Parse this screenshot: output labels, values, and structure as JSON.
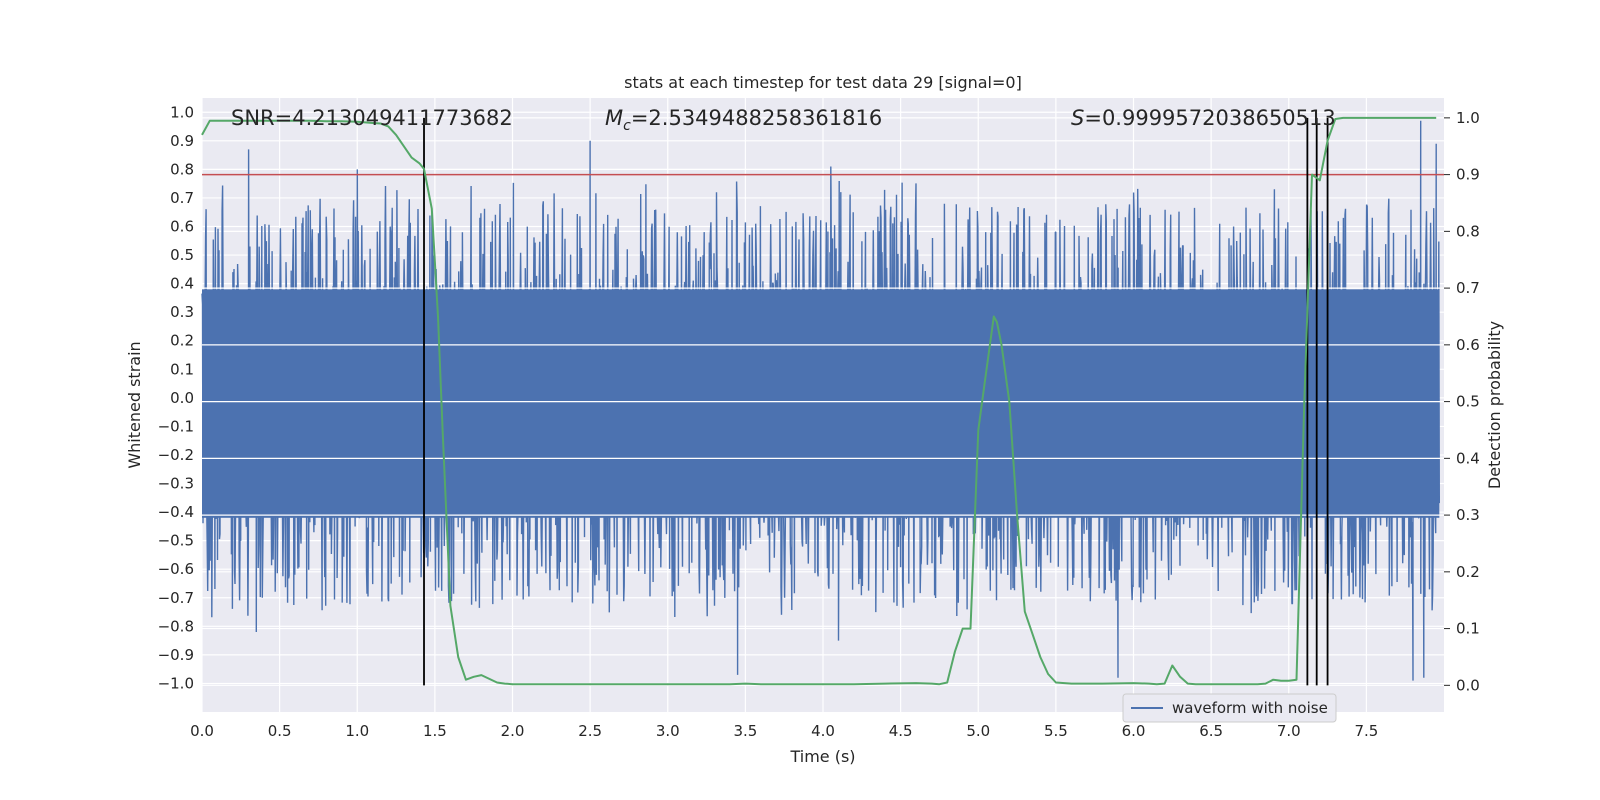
{
  "chart_data": {
    "type": "line",
    "title": "stats at each timestep for test data 29 [signal=0]",
    "xlabel": "Time (s)",
    "ylabel": "Whitened strain",
    "ylabel_right": "Detection probability",
    "xlim": [
      0.0,
      8.0
    ],
    "ylim": [
      -1.1,
      1.05
    ],
    "ylim_right": [
      -0.047,
      1.035
    ],
    "x_ticks": [
      "0.0",
      "0.5",
      "1.0",
      "1.5",
      "2.0",
      "2.5",
      "3.0",
      "3.5",
      "4.0",
      "4.5",
      "5.0",
      "5.5",
      "6.0",
      "6.5",
      "7.0",
      "7.5"
    ],
    "y_ticks_left": [
      "1.0",
      "0.9",
      "0.8",
      "0.7",
      "0.6",
      "0.5",
      "0.4",
      "0.3",
      "0.2",
      "0.1",
      "0.0",
      "−0.1",
      "−0.2",
      "−0.3",
      "−0.4",
      "−0.5",
      "−0.6",
      "−0.7",
      "−0.8",
      "−0.9",
      "−1.0"
    ],
    "y_ticks_right": [
      "1.0",
      "0.9",
      "0.8",
      "0.7",
      "0.6",
      "0.5",
      "0.4",
      "0.3",
      "0.2",
      "0.1",
      "0.0"
    ],
    "annotations": {
      "snr": "SNR=4.213049411773682",
      "mc_symbol": "M",
      "mc_subscript": "c",
      "mc_value": "=2.5349488258361816",
      "s_symbol": "S",
      "s_value": "=0.9999572038650513"
    },
    "legend": {
      "label": "waveform with noise",
      "position": "lower right"
    },
    "threshold_line": {
      "y_right": 0.9,
      "color": "#c44e52"
    },
    "vertical_lines": [
      1.43,
      7.12,
      7.18,
      7.25
    ],
    "waveform": {
      "name": "waveform with noise",
      "color": "#4c72b0",
      "band_low": -0.42,
      "band_high": 0.38,
      "notable_peaks": [
        {
          "x": 0.3,
          "y": 0.87
        },
        {
          "x": 1.0,
          "y": 0.8
        },
        {
          "x": 2.5,
          "y": 0.9
        },
        {
          "x": 4.05,
          "y": 0.81
        },
        {
          "x": 7.85,
          "y": 0.97
        },
        {
          "x": 7.95,
          "y": 0.89
        },
        {
          "x": 3.45,
          "y": -0.97
        },
        {
          "x": 5.9,
          "y": -0.98
        },
        {
          "x": 7.8,
          "y": -0.99
        },
        {
          "x": 7.87,
          "y": -0.98
        },
        {
          "x": 0.35,
          "y": -0.82
        },
        {
          "x": 4.1,
          "y": -0.85
        }
      ]
    },
    "probability": {
      "name": "detection probability",
      "color": "#55a868",
      "x": [
        0.0,
        0.05,
        0.1,
        0.2,
        0.3,
        0.4,
        0.5,
        0.6,
        0.7,
        0.8,
        0.9,
        1.0,
        1.05,
        1.1,
        1.15,
        1.2,
        1.25,
        1.3,
        1.35,
        1.4,
        1.43,
        1.48,
        1.52,
        1.55,
        1.6,
        1.65,
        1.7,
        1.75,
        1.8,
        1.9,
        1.95,
        2.0,
        2.2,
        2.5,
        2.8,
        3.0,
        3.2,
        3.4,
        3.5,
        3.6,
        3.8,
        4.0,
        4.2,
        4.4,
        4.6,
        4.7,
        4.75,
        4.8,
        4.85,
        4.9,
        4.95,
        5.0,
        5.05,
        5.1,
        5.12,
        5.15,
        5.2,
        5.25,
        5.3,
        5.35,
        5.4,
        5.45,
        5.5,
        5.6,
        5.8,
        6.0,
        6.1,
        6.15,
        6.2,
        6.25,
        6.3,
        6.35,
        6.4,
        6.6,
        6.8,
        6.85,
        6.9,
        6.95,
        7.0,
        7.05,
        7.1,
        7.15,
        7.2,
        7.25,
        7.3,
        7.35,
        7.4,
        7.45,
        7.5,
        7.6,
        7.7,
        7.8,
        7.9,
        7.95
      ],
      "y": [
        0.97,
        0.995,
        0.995,
        0.995,
        0.995,
        0.995,
        0.995,
        0.995,
        0.995,
        0.994,
        0.994,
        0.993,
        0.992,
        0.991,
        0.99,
        0.985,
        0.97,
        0.95,
        0.93,
        0.92,
        0.91,
        0.84,
        0.65,
        0.45,
        0.14,
        0.05,
        0.01,
        0.015,
        0.018,
        0.005,
        0.003,
        0.002,
        0.002,
        0.002,
        0.002,
        0.002,
        0.002,
        0.002,
        0.003,
        0.002,
        0.002,
        0.002,
        0.002,
        0.003,
        0.004,
        0.003,
        0.002,
        0.005,
        0.06,
        0.1,
        0.1,
        0.45,
        0.55,
        0.65,
        0.64,
        0.6,
        0.5,
        0.3,
        0.13,
        0.09,
        0.05,
        0.02,
        0.005,
        0.003,
        0.003,
        0.004,
        0.003,
        0.002,
        0.003,
        0.035,
        0.015,
        0.003,
        0.002,
        0.002,
        0.002,
        0.003,
        0.01,
        0.008,
        0.008,
        0.01,
        0.5,
        0.9,
        0.89,
        0.96,
        0.998,
        1.0,
        1.0,
        1.0,
        1.0,
        1.0,
        1.0,
        1.0,
        1.0,
        1.0
      ]
    }
  }
}
